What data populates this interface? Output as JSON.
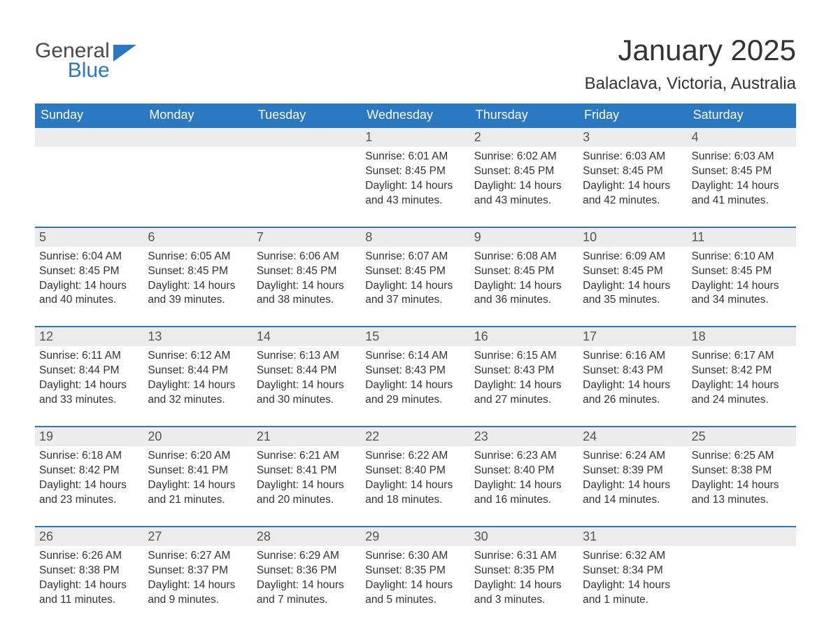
{
  "logo": {
    "line1": "General",
    "line2": "Blue",
    "icon_color": "#2b78c2"
  },
  "title": "January 2025",
  "location": "Balaclava, Victoria, Australia",
  "colors": {
    "header_bg": "#2b78c2",
    "header_text": "#ffffff",
    "daynum_bg": "#ececec",
    "text": "#333333",
    "week_border": "#2b78c2"
  },
  "weekdays": [
    "Sunday",
    "Monday",
    "Tuesday",
    "Wednesday",
    "Thursday",
    "Friday",
    "Saturday"
  ],
  "weeks": [
    [
      {
        "num": "",
        "lines": []
      },
      {
        "num": "",
        "lines": []
      },
      {
        "num": "",
        "lines": []
      },
      {
        "num": "1",
        "lines": [
          "Sunrise: 6:01 AM",
          "Sunset: 8:45 PM",
          "Daylight: 14 hours",
          "and 43 minutes."
        ]
      },
      {
        "num": "2",
        "lines": [
          "Sunrise: 6:02 AM",
          "Sunset: 8:45 PM",
          "Daylight: 14 hours",
          "and 43 minutes."
        ]
      },
      {
        "num": "3",
        "lines": [
          "Sunrise: 6:03 AM",
          "Sunset: 8:45 PM",
          "Daylight: 14 hours",
          "and 42 minutes."
        ]
      },
      {
        "num": "4",
        "lines": [
          "Sunrise: 6:03 AM",
          "Sunset: 8:45 PM",
          "Daylight: 14 hours",
          "and 41 minutes."
        ]
      }
    ],
    [
      {
        "num": "5",
        "lines": [
          "Sunrise: 6:04 AM",
          "Sunset: 8:45 PM",
          "Daylight: 14 hours",
          "and 40 minutes."
        ]
      },
      {
        "num": "6",
        "lines": [
          "Sunrise: 6:05 AM",
          "Sunset: 8:45 PM",
          "Daylight: 14 hours",
          "and 39 minutes."
        ]
      },
      {
        "num": "7",
        "lines": [
          "Sunrise: 6:06 AM",
          "Sunset: 8:45 PM",
          "Daylight: 14 hours",
          "and 38 minutes."
        ]
      },
      {
        "num": "8",
        "lines": [
          "Sunrise: 6:07 AM",
          "Sunset: 8:45 PM",
          "Daylight: 14 hours",
          "and 37 minutes."
        ]
      },
      {
        "num": "9",
        "lines": [
          "Sunrise: 6:08 AM",
          "Sunset: 8:45 PM",
          "Daylight: 14 hours",
          "and 36 minutes."
        ]
      },
      {
        "num": "10",
        "lines": [
          "Sunrise: 6:09 AM",
          "Sunset: 8:45 PM",
          "Daylight: 14 hours",
          "and 35 minutes."
        ]
      },
      {
        "num": "11",
        "lines": [
          "Sunrise: 6:10 AM",
          "Sunset: 8:45 PM",
          "Daylight: 14 hours",
          "and 34 minutes."
        ]
      }
    ],
    [
      {
        "num": "12",
        "lines": [
          "Sunrise: 6:11 AM",
          "Sunset: 8:44 PM",
          "Daylight: 14 hours",
          "and 33 minutes."
        ]
      },
      {
        "num": "13",
        "lines": [
          "Sunrise: 6:12 AM",
          "Sunset: 8:44 PM",
          "Daylight: 14 hours",
          "and 32 minutes."
        ]
      },
      {
        "num": "14",
        "lines": [
          "Sunrise: 6:13 AM",
          "Sunset: 8:44 PM",
          "Daylight: 14 hours",
          "and 30 minutes."
        ]
      },
      {
        "num": "15",
        "lines": [
          "Sunrise: 6:14 AM",
          "Sunset: 8:43 PM",
          "Daylight: 14 hours",
          "and 29 minutes."
        ]
      },
      {
        "num": "16",
        "lines": [
          "Sunrise: 6:15 AM",
          "Sunset: 8:43 PM",
          "Daylight: 14 hours",
          "and 27 minutes."
        ]
      },
      {
        "num": "17",
        "lines": [
          "Sunrise: 6:16 AM",
          "Sunset: 8:43 PM",
          "Daylight: 14 hours",
          "and 26 minutes."
        ]
      },
      {
        "num": "18",
        "lines": [
          "Sunrise: 6:17 AM",
          "Sunset: 8:42 PM",
          "Daylight: 14 hours",
          "and 24 minutes."
        ]
      }
    ],
    [
      {
        "num": "19",
        "lines": [
          "Sunrise: 6:18 AM",
          "Sunset: 8:42 PM",
          "Daylight: 14 hours",
          "and 23 minutes."
        ]
      },
      {
        "num": "20",
        "lines": [
          "Sunrise: 6:20 AM",
          "Sunset: 8:41 PM",
          "Daylight: 14 hours",
          "and 21 minutes."
        ]
      },
      {
        "num": "21",
        "lines": [
          "Sunrise: 6:21 AM",
          "Sunset: 8:41 PM",
          "Daylight: 14 hours",
          "and 20 minutes."
        ]
      },
      {
        "num": "22",
        "lines": [
          "Sunrise: 6:22 AM",
          "Sunset: 8:40 PM",
          "Daylight: 14 hours",
          "and 18 minutes."
        ]
      },
      {
        "num": "23",
        "lines": [
          "Sunrise: 6:23 AM",
          "Sunset: 8:40 PM",
          "Daylight: 14 hours",
          "and 16 minutes."
        ]
      },
      {
        "num": "24",
        "lines": [
          "Sunrise: 6:24 AM",
          "Sunset: 8:39 PM",
          "Daylight: 14 hours",
          "and 14 minutes."
        ]
      },
      {
        "num": "25",
        "lines": [
          "Sunrise: 6:25 AM",
          "Sunset: 8:38 PM",
          "Daylight: 14 hours",
          "and 13 minutes."
        ]
      }
    ],
    [
      {
        "num": "26",
        "lines": [
          "Sunrise: 6:26 AM",
          "Sunset: 8:38 PM",
          "Daylight: 14 hours",
          "and 11 minutes."
        ]
      },
      {
        "num": "27",
        "lines": [
          "Sunrise: 6:27 AM",
          "Sunset: 8:37 PM",
          "Daylight: 14 hours",
          "and 9 minutes."
        ]
      },
      {
        "num": "28",
        "lines": [
          "Sunrise: 6:29 AM",
          "Sunset: 8:36 PM",
          "Daylight: 14 hours",
          "and 7 minutes."
        ]
      },
      {
        "num": "29",
        "lines": [
          "Sunrise: 6:30 AM",
          "Sunset: 8:35 PM",
          "Daylight: 14 hours",
          "and 5 minutes."
        ]
      },
      {
        "num": "30",
        "lines": [
          "Sunrise: 6:31 AM",
          "Sunset: 8:35 PM",
          "Daylight: 14 hours",
          "and 3 minutes."
        ]
      },
      {
        "num": "31",
        "lines": [
          "Sunrise: 6:32 AM",
          "Sunset: 8:34 PM",
          "Daylight: 14 hours",
          "and 1 minute."
        ]
      },
      {
        "num": "",
        "lines": []
      }
    ]
  ]
}
